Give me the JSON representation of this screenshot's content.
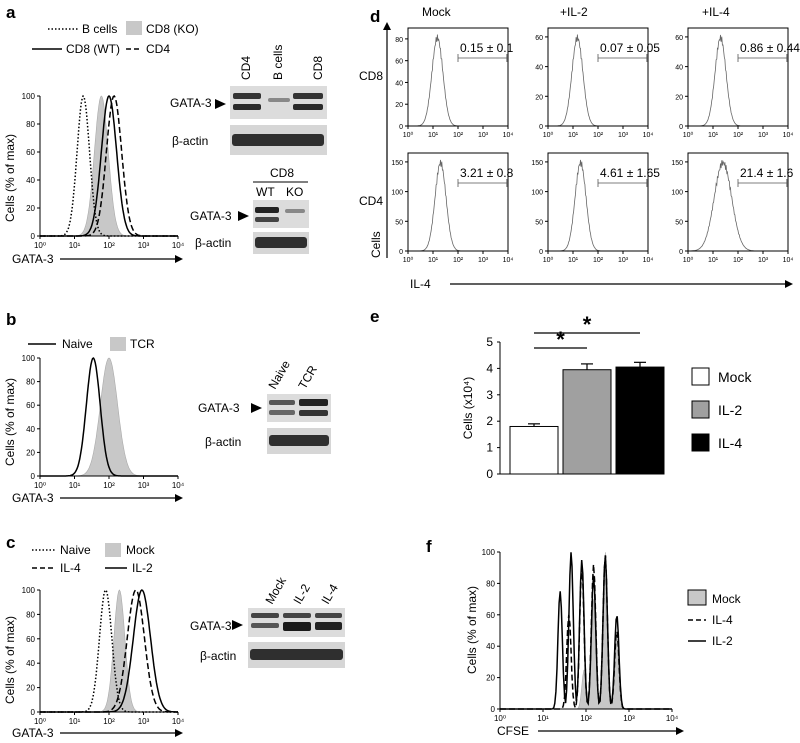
{
  "panels": {
    "a": {
      "label": "a",
      "legend": [
        "B cells",
        "CD8 (KO)",
        "CD8 (WT)",
        "CD4"
      ],
      "y_label": "Cells (% of max)",
      "x_label": "GATA-3",
      "blot1": {
        "lanes": [
          "CD4",
          "B cells",
          "CD8"
        ],
        "rows": [
          "GATA-3",
          "β-actin"
        ]
      },
      "blot2": {
        "header": "CD8",
        "lanes": [
          "WT",
          "KO"
        ],
        "rows": [
          "GATA-3",
          "β-actin"
        ]
      }
    },
    "b": {
      "label": "b",
      "legend": [
        "Naive",
        "TCR"
      ],
      "y_label": "Cells (% of max)",
      "x_label": "GATA-3",
      "blot": {
        "lanes": [
          "Naive",
          "TCR"
        ],
        "rows": [
          "GATA-3",
          "β-actin"
        ]
      }
    },
    "c": {
      "label": "c",
      "legend": [
        "Naive",
        "Mock",
        "IL-4",
        "IL-2"
      ],
      "y_label": "Cells (% of max)",
      "x_label": "GATA-3",
      "blot": {
        "lanes": [
          "Mock",
          "IL-2",
          "IL-4"
        ],
        "rows": [
          "GATA-3",
          "β-actin"
        ]
      }
    },
    "d": {
      "label": "d",
      "columns": [
        "Mock",
        "+IL-2",
        "+IL-4"
      ],
      "rows": [
        "CD8",
        "CD4"
      ],
      "y_label": "Cells",
      "x_label": "IL-4",
      "stats": [
        [
          "0.15 ± 0.1",
          "0.07 ± 0.05",
          "0.86 ± 0.44"
        ],
        [
          "3.21 ± 0.8",
          "4.61 ± 1.65",
          "21.4 ± 1.6"
        ]
      ]
    },
    "e": {
      "label": "e"
    },
    "f": {
      "label": "f",
      "legend": [
        "Mock",
        "IL-4",
        "IL-2"
      ],
      "y_label": "Cells (% of max)",
      "x_label": "CFSE"
    }
  },
  "chart_data": [
    {
      "type": "line",
      "panel": "a",
      "xlabel": "GATA-3",
      "ylabel": "Cells (% of max)",
      "x_scale": "log",
      "xlim": [
        1,
        10000
      ],
      "ylim": [
        0,
        100
      ],
      "x_ticks": [
        "10⁰",
        "10¹",
        "10²",
        "10³",
        "10⁴"
      ],
      "y_ticks": [
        0,
        20,
        40,
        60,
        80,
        100
      ],
      "series": [
        {
          "name": "B cells",
          "style": "dotted",
          "peak_x": 18
        },
        {
          "name": "CD8 (KO)",
          "style": "filled",
          "peak_x": 60
        },
        {
          "name": "CD8 (WT)",
          "style": "solid",
          "peak_x": 100
        },
        {
          "name": "CD4",
          "style": "dashed",
          "peak_x": 140
        }
      ]
    },
    {
      "type": "line",
      "panel": "b",
      "xlabel": "GATA-3",
      "ylabel": "Cells (% of max)",
      "x_scale": "log",
      "xlim": [
        1,
        10000
      ],
      "ylim": [
        0,
        100
      ],
      "x_ticks": [
        "10⁰",
        "10¹",
        "10²",
        "10³",
        "10⁴"
      ],
      "y_ticks": [
        0,
        20,
        40,
        60,
        80,
        100
      ],
      "series": [
        {
          "name": "Naive",
          "style": "solid",
          "peak_x": 35
        },
        {
          "name": "TCR",
          "style": "filled",
          "peak_x": 100
        }
      ]
    },
    {
      "type": "line",
      "panel": "c",
      "xlabel": "GATA-3",
      "ylabel": "Cells (% of max)",
      "x_scale": "log",
      "xlim": [
        1,
        10000
      ],
      "ylim": [
        0,
        100
      ],
      "x_ticks": [
        "10⁰",
        "10¹",
        "10²",
        "10³",
        "10⁴"
      ],
      "y_ticks": [
        0,
        20,
        40,
        60,
        80,
        100
      ],
      "series": [
        {
          "name": "Naive",
          "style": "dotted",
          "peak_x": 80
        },
        {
          "name": "Mock",
          "style": "filled",
          "peak_x": 200
        },
        {
          "name": "IL-4",
          "style": "dashed",
          "peak_x": 600
        },
        {
          "name": "IL-2",
          "style": "solid",
          "peak_x": 900
        }
      ]
    },
    {
      "type": "line",
      "panel": "d",
      "xlabel": "IL-4",
      "ylabel": "Cells",
      "x_scale": "log",
      "xlim": [
        1,
        10000
      ],
      "x_ticks": [
        "10⁰",
        "10¹",
        "10²",
        "10³",
        "10⁴"
      ],
      "subplots": [
        {
          "row": "CD8",
          "column": "Mock",
          "y_ticks": [
            0,
            20,
            40,
            60,
            80
          ],
          "ymax": 90,
          "peak_x": 15,
          "stat": "0.15 ± 0.1"
        },
        {
          "row": "CD8",
          "column": "+IL-2",
          "y_ticks": [
            0,
            20,
            40,
            60
          ],
          "ymax": 66,
          "peak_x": 15,
          "stat": "0.07 ± 0.05"
        },
        {
          "row": "CD8",
          "column": "+IL-4",
          "y_ticks": [
            0,
            20,
            40,
            60
          ],
          "ymax": 66,
          "peak_x": 20,
          "stat": "0.86 ± 0.44"
        },
        {
          "row": "CD4",
          "column": "Mock",
          "y_ticks": [
            0,
            50,
            100,
            150
          ],
          "ymax": 165,
          "peak_x": 20,
          "stat": "3.21 ± 0.8"
        },
        {
          "row": "CD4",
          "column": "+IL-2",
          "y_ticks": [
            0,
            50,
            100,
            150
          ],
          "ymax": 165,
          "peak_x": 20,
          "stat": "4.61 ± 1.65"
        },
        {
          "row": "CD4",
          "column": "+IL-4",
          "y_ticks": [
            0,
            50,
            100,
            150
          ],
          "ymax": 165,
          "peak_x": 25,
          "stat": "21.4 ± 1.6"
        }
      ]
    },
    {
      "type": "bar",
      "panel": "e",
      "categories": [
        "Mock",
        "IL-2",
        "IL-4"
      ],
      "values": [
        1.8,
        3.95,
        4.05
      ],
      "errors": [
        0.1,
        0.22,
        0.18
      ],
      "colors": [
        "#ffffff",
        "#a0a0a0",
        "#000000"
      ],
      "ylabel": "Cells (x10⁴)",
      "ylim": [
        0,
        5
      ],
      "y_ticks": [
        0,
        1,
        2,
        3,
        4,
        5
      ],
      "significance": [
        {
          "pair": [
            "Mock",
            "IL-2"
          ],
          "label": "*"
        },
        {
          "pair": [
            "Mock",
            "IL-4"
          ],
          "label": "*"
        }
      ],
      "legend": [
        "Mock",
        "IL-2",
        "IL-4"
      ]
    },
    {
      "type": "line",
      "panel": "f",
      "xlabel": "CFSE",
      "ylabel": "Cells (% of max)",
      "x_scale": "log",
      "xlim": [
        1,
        10000
      ],
      "ylim": [
        0,
        100
      ],
      "x_ticks": [
        "10⁰",
        "10¹",
        "10²",
        "10³",
        "10⁴"
      ],
      "y_ticks": [
        0,
        20,
        40,
        60,
        80,
        100
      ],
      "series": [
        {
          "name": "Mock",
          "style": "filled",
          "peaks": [
            [
              90,
              25
            ],
            [
              150,
              70
            ],
            [
              280,
              100
            ],
            [
              520,
              45
            ]
          ]
        },
        {
          "name": "IL-4",
          "style": "dashed",
          "peaks": [
            [
              40,
              60
            ],
            [
              80,
              90
            ],
            [
              150,
              92
            ],
            [
              280,
              98
            ],
            [
              520,
              50
            ]
          ]
        },
        {
          "name": "IL-2",
          "style": "solid",
          "peaks": [
            [
              25,
              75
            ],
            [
              45,
              100
            ],
            [
              80,
              95
            ],
            [
              150,
              85
            ],
            [
              280,
              98
            ],
            [
              520,
              60
            ]
          ]
        }
      ]
    }
  ]
}
